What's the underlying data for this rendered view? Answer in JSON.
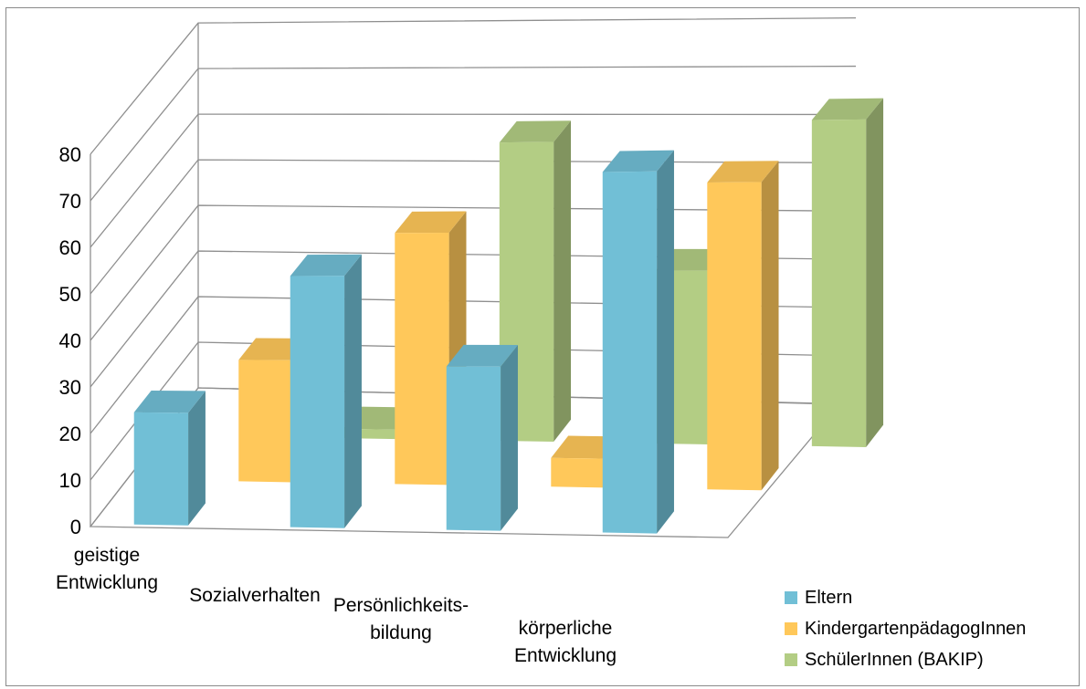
{
  "chart_data": {
    "type": "bar",
    "variant": "3d-clustered-depth",
    "title": "",
    "xlabel": "",
    "ylabel": "",
    "ylim": [
      0,
      80
    ],
    "yticks": [
      "0",
      "10",
      "20",
      "30",
      "40",
      "50",
      "60",
      "70",
      "80"
    ],
    "grid": true,
    "legend_position": "bottom-right",
    "categories": [
      [
        "geistige",
        "Entwicklung"
      ],
      [
        "Sozialverhalten"
      ],
      [
        "Persönlichkeits-",
        "bildung"
      ],
      [
        "körperliche",
        "Entwicklung"
      ]
    ],
    "series": [
      {
        "name": "Eltern",
        "color": "#71bfd6",
        "values": [
          24,
          53,
          34,
          74
        ]
      },
      {
        "name": "KindergartenpädagogInnen",
        "color": "#ffc85a",
        "values": [
          26,
          53,
          6,
          63
        ]
      },
      {
        "name": "SchülerInnen (BAKIP)",
        "color": "#b3cd84",
        "values": [
          2,
          63,
          36,
          67
        ]
      }
    ]
  }
}
